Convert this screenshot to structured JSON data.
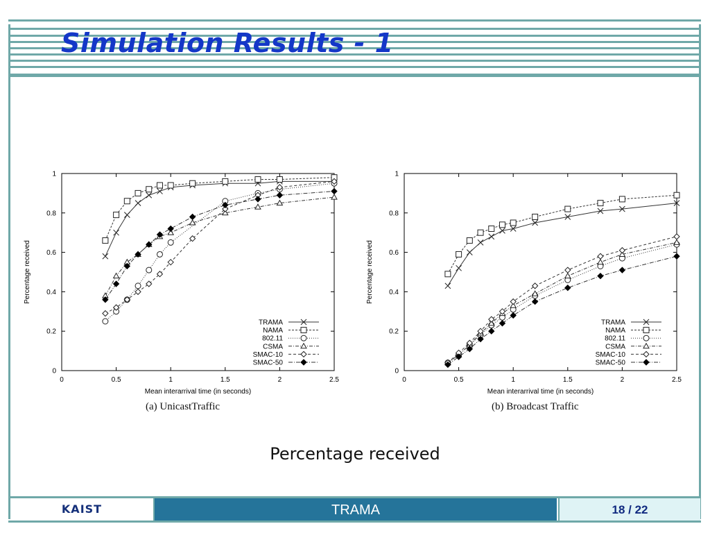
{
  "slide": {
    "title": "Simulation Results - 1",
    "subcaption": "Percentage received"
  },
  "footer": {
    "logo": "KAIST",
    "topic": "TRAMA",
    "page": "18 / 22"
  },
  "legend_order": [
    "TRAMA",
    "NAMA",
    "802.11",
    "CSMA",
    "SMAC-10",
    "SMAC-50"
  ],
  "chart_data": [
    {
      "type": "line",
      "caption": "(a) UnicastTraffic",
      "xlabel": "Mean interarrival time (in seconds)",
      "ylabel": "Percentage received",
      "xlim": [
        0,
        2.5
      ],
      "ylim": [
        0,
        1
      ],
      "xticks": [
        "0",
        "0.5",
        "1",
        "1.5",
        "2",
        "2.5"
      ],
      "yticks": [
        "0",
        "0.2",
        "0.4",
        "0.6",
        "0.8",
        "1"
      ],
      "legend_position": "bottom-right",
      "series": [
        {
          "name": "TRAMA",
          "marker": "x",
          "dash": "",
          "x": [
            0.4,
            0.5,
            0.6,
            0.7,
            0.8,
            0.9,
            1.0,
            1.2,
            1.5,
            1.8,
            2.0,
            2.5
          ],
          "y": [
            0.58,
            0.7,
            0.79,
            0.85,
            0.89,
            0.91,
            0.93,
            0.94,
            0.95,
            0.95,
            0.96,
            0.96
          ]
        },
        {
          "name": "NAMA",
          "marker": "square",
          "dash": "3,2",
          "x": [
            0.4,
            0.5,
            0.6,
            0.7,
            0.8,
            0.9,
            1.0,
            1.2,
            1.5,
            1.8,
            2.0,
            2.5
          ],
          "y": [
            0.66,
            0.79,
            0.86,
            0.9,
            0.92,
            0.94,
            0.94,
            0.95,
            0.96,
            0.97,
            0.97,
            0.98
          ]
        },
        {
          "name": "802.11",
          "marker": "circle",
          "dash": "1,2",
          "x": [
            0.4,
            0.5,
            0.6,
            0.7,
            0.8,
            0.9,
            1.0,
            1.5,
            1.8,
            2.0,
            2.5
          ],
          "y": [
            0.25,
            0.3,
            0.36,
            0.43,
            0.51,
            0.59,
            0.65,
            0.86,
            0.9,
            0.92,
            0.95
          ]
        },
        {
          "name": "CSMA",
          "marker": "triangle",
          "dash": "5,2,1,2",
          "x": [
            0.4,
            0.5,
            0.6,
            0.7,
            0.8,
            0.9,
            1.0,
            1.2,
            1.5,
            1.8,
            2.0,
            2.5
          ],
          "y": [
            0.38,
            0.48,
            0.55,
            0.59,
            0.64,
            0.68,
            0.7,
            0.75,
            0.8,
            0.83,
            0.85,
            0.88
          ]
        },
        {
          "name": "SMAC-10",
          "marker": "diamond",
          "dash": "4,3",
          "x": [
            0.4,
            0.5,
            0.6,
            0.7,
            0.8,
            0.9,
            1.0,
            1.2,
            1.5,
            1.8,
            2.0,
            2.5
          ],
          "y": [
            0.29,
            0.32,
            0.36,
            0.4,
            0.44,
            0.49,
            0.55,
            0.67,
            0.82,
            0.89,
            0.93,
            0.96
          ]
        },
        {
          "name": "SMAC-50",
          "marker": "diamond-filled",
          "dash": "6,2,1,2",
          "x": [
            0.4,
            0.5,
            0.6,
            0.7,
            0.8,
            0.9,
            1.0,
            1.2,
            1.5,
            1.8,
            2.0,
            2.5
          ],
          "y": [
            0.36,
            0.44,
            0.53,
            0.59,
            0.64,
            0.69,
            0.72,
            0.78,
            0.84,
            0.87,
            0.89,
            0.91
          ]
        }
      ]
    },
    {
      "type": "line",
      "caption": "(b) Broadcast Traffic",
      "xlabel": "Mean interarrival time (in seconds)",
      "ylabel": "Percentage received",
      "xlim": [
        0,
        2.5
      ],
      "ylim": [
        0,
        1
      ],
      "xticks": [
        "0",
        "0.5",
        "1",
        "1.5",
        "2",
        "2.5"
      ],
      "yticks": [
        "0",
        "0.2",
        "0.4",
        "0.6",
        "0.8",
        "1"
      ],
      "legend_position": "bottom-right",
      "series": [
        {
          "name": "TRAMA",
          "marker": "x",
          "dash": "",
          "x": [
            0.4,
            0.5,
            0.6,
            0.7,
            0.8,
            0.9,
            1.0,
            1.2,
            1.5,
            1.8,
            2.0,
            2.5
          ],
          "y": [
            0.43,
            0.52,
            0.6,
            0.65,
            0.68,
            0.71,
            0.72,
            0.75,
            0.78,
            0.81,
            0.82,
            0.85
          ]
        },
        {
          "name": "NAMA",
          "marker": "square",
          "dash": "3,2",
          "x": [
            0.4,
            0.5,
            0.6,
            0.7,
            0.8,
            0.9,
            1.0,
            1.2,
            1.5,
            1.8,
            2.0,
            2.5
          ],
          "y": [
            0.49,
            0.59,
            0.66,
            0.7,
            0.72,
            0.74,
            0.75,
            0.78,
            0.82,
            0.85,
            0.87,
            0.89
          ]
        },
        {
          "name": "802.11",
          "marker": "circle",
          "dash": "1,2",
          "x": [
            0.4,
            0.5,
            0.6,
            0.7,
            0.8,
            0.9,
            1.0,
            1.2,
            1.5,
            1.8,
            2.0,
            2.5
          ],
          "y": [
            0.04,
            0.08,
            0.13,
            0.18,
            0.23,
            0.27,
            0.31,
            0.38,
            0.46,
            0.53,
            0.57,
            0.64
          ]
        },
        {
          "name": "CSMA",
          "marker": "triangle",
          "dash": "5,2,1,2",
          "x": [
            0.4,
            0.5,
            0.6,
            0.7,
            0.8,
            0.9,
            1.0,
            1.2,
            1.5,
            1.8,
            2.0,
            2.5
          ],
          "y": [
            0.04,
            0.08,
            0.13,
            0.19,
            0.24,
            0.29,
            0.33,
            0.39,
            0.48,
            0.55,
            0.59,
            0.65
          ]
        },
        {
          "name": "SMAC-10",
          "marker": "diamond",
          "dash": "4,3",
          "x": [
            0.4,
            0.5,
            0.6,
            0.7,
            0.8,
            0.9,
            1.0,
            1.2,
            1.5,
            1.8,
            2.0,
            2.5
          ],
          "y": [
            0.04,
            0.09,
            0.14,
            0.2,
            0.26,
            0.3,
            0.35,
            0.43,
            0.51,
            0.58,
            0.61,
            0.68
          ]
        },
        {
          "name": "SMAC-50",
          "marker": "diamond-filled",
          "dash": "6,2,1,2",
          "x": [
            0.4,
            0.5,
            0.6,
            0.7,
            0.8,
            0.9,
            1.0,
            1.2,
            1.5,
            1.8,
            2.0,
            2.5
          ],
          "y": [
            0.03,
            0.07,
            0.11,
            0.16,
            0.2,
            0.24,
            0.28,
            0.35,
            0.42,
            0.48,
            0.51,
            0.58
          ]
        }
      ]
    }
  ]
}
